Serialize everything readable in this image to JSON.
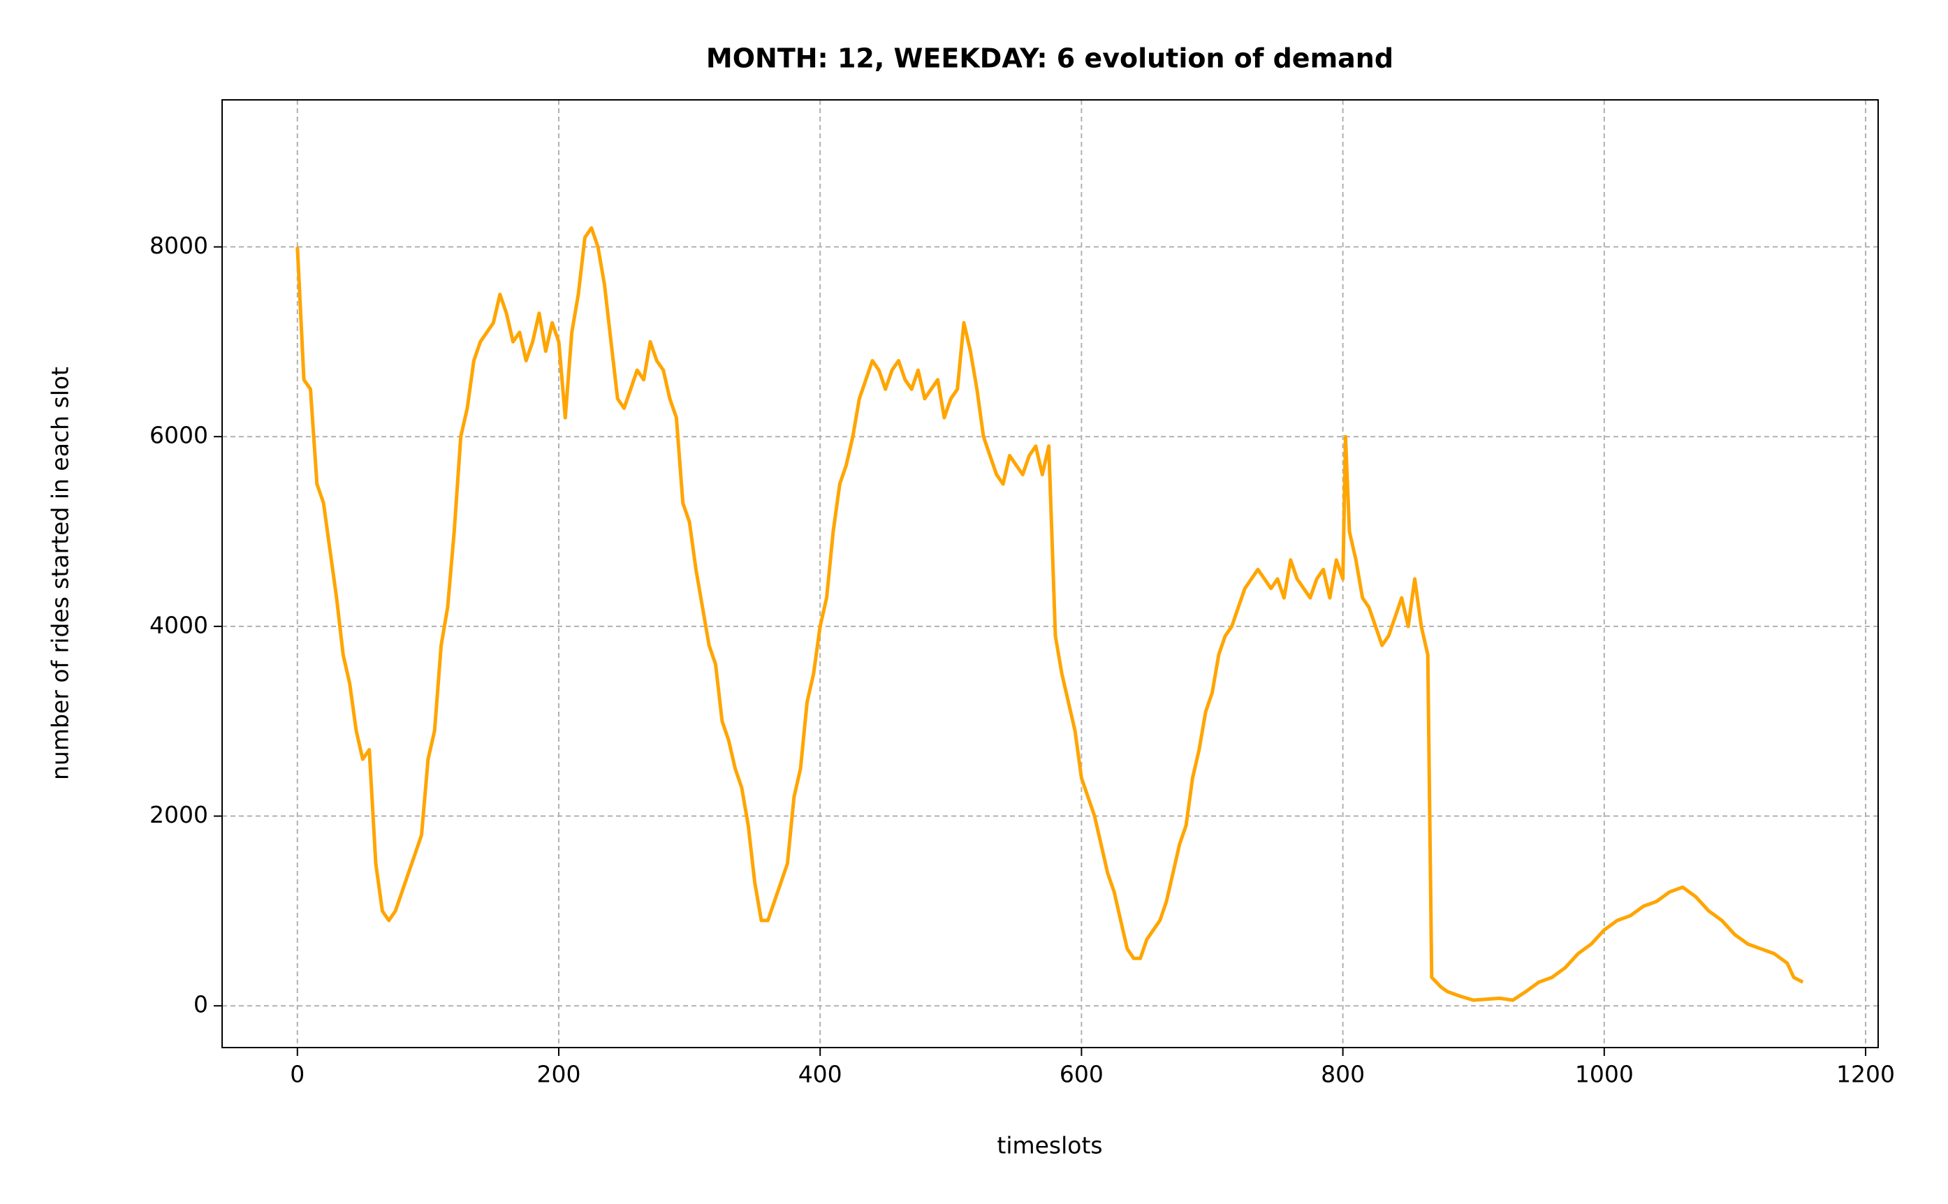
{
  "chart_data": {
    "type": "line",
    "title": "MONTH: 12, WEEKDAY: 6 evolution of demand",
    "x_label": "timeslots",
    "y_label": "number of rides started in each slot",
    "color": "#ffa500",
    "grid": true,
    "xlim": [
      -57.6,
      1209.6
    ],
    "ylim": [
      -440,
      9550
    ],
    "xticks": [
      0,
      200,
      400,
      600,
      800,
      1000,
      1200
    ],
    "yticks": [
      0,
      2000,
      4000,
      6000,
      8000
    ],
    "x": [
      0,
      5,
      10,
      15,
      20,
      25,
      30,
      35,
      40,
      45,
      50,
      55,
      60,
      65,
      70,
      75,
      80,
      85,
      90,
      95,
      100,
      105,
      110,
      115,
      120,
      125,
      130,
      135,
      140,
      145,
      150,
      155,
      160,
      165,
      170,
      175,
      180,
      185,
      190,
      195,
      200,
      205,
      210,
      215,
      220,
      225,
      230,
      235,
      240,
      245,
      250,
      255,
      260,
      265,
      270,
      275,
      280,
      285,
      290,
      295,
      300,
      305,
      310,
      315,
      320,
      325,
      330,
      335,
      340,
      345,
      350,
      355,
      360,
      365,
      370,
      375,
      380,
      385,
      390,
      395,
      400,
      405,
      410,
      415,
      420,
      425,
      430,
      435,
      440,
      445,
      450,
      455,
      460,
      465,
      470,
      475,
      480,
      485,
      490,
      495,
      500,
      505,
      510,
      515,
      520,
      525,
      530,
      535,
      540,
      545,
      550,
      555,
      560,
      565,
      570,
      575,
      580,
      585,
      590,
      595,
      600,
      605,
      610,
      615,
      620,
      625,
      630,
      635,
      640,
      645,
      650,
      655,
      660,
      665,
      670,
      675,
      680,
      685,
      690,
      695,
      700,
      705,
      710,
      715,
      720,
      725,
      730,
      735,
      740,
      745,
      750,
      755,
      760,
      765,
      770,
      775,
      780,
      785,
      790,
      795,
      800,
      802,
      805,
      810,
      815,
      820,
      825,
      830,
      835,
      840,
      845,
      850,
      855,
      860,
      865,
      868,
      875,
      880,
      890,
      900,
      910,
      920,
      930,
      940,
      950,
      960,
      970,
      980,
      990,
      1000,
      1010,
      1020,
      1030,
      1040,
      1050,
      1060,
      1070,
      1080,
      1090,
      1100,
      1110,
      1120,
      1130,
      1140,
      1145,
      1152
    ],
    "values": [
      8000,
      6600,
      6500,
      5500,
      5300,
      4800,
      4300,
      3700,
      3400,
      2900,
      2600,
      2700,
      1500,
      1000,
      900,
      1000,
      1200,
      1400,
      1600,
      1800,
      2600,
      2900,
      3800,
      4200,
      5000,
      6000,
      6300,
      6800,
      7000,
      7100,
      7200,
      7500,
      7300,
      7000,
      7100,
      6800,
      7000,
      7300,
      6900,
      7200,
      7000,
      6200,
      7100,
      7500,
      8100,
      8200,
      8000,
      7600,
      7000,
      6400,
      6300,
      6500,
      6700,
      6600,
      7000,
      6800,
      6700,
      6400,
      6200,
      5300,
      5100,
      4600,
      4200,
      3800,
      3600,
      3000,
      2800,
      2500,
      2300,
      1900,
      1300,
      900,
      900,
      1100,
      1300,
      1500,
      2200,
      2500,
      3200,
      3500,
      4000,
      4300,
      5000,
      5500,
      5700,
      6000,
      6400,
      6600,
      6800,
      6700,
      6500,
      6700,
      6800,
      6600,
      6500,
      6700,
      6400,
      6500,
      6600,
      6200,
      6400,
      6500,
      7200,
      6900,
      6500,
      6000,
      5800,
      5600,
      5500,
      5800,
      5700,
      5600,
      5800,
      5900,
      5600,
      5900,
      3900,
      3500,
      3200,
      2900,
      2400,
      2200,
      2000,
      1700,
      1400,
      1200,
      900,
      600,
      500,
      500,
      700,
      800,
      900,
      1100,
      1400,
      1700,
      1900,
      2400,
      2700,
      3100,
      3300,
      3700,
      3900,
      4000,
      4200,
      4400,
      4500,
      4600,
      4500,
      4400,
      4500,
      4300,
      4700,
      4500,
      4400,
      4300,
      4500,
      4600,
      4300,
      4700,
      4500,
      6000,
      5000,
      4700,
      4300,
      4200,
      4000,
      3800,
      3900,
      4100,
      4300,
      4000,
      4500,
      4000,
      3700,
      300,
      200,
      150,
      100,
      60,
      70,
      80,
      60,
      150,
      250,
      300,
      400,
      550,
      650,
      800,
      900,
      950,
      1050,
      1100,
      1200,
      1250,
      1150,
      1000,
      900,
      750,
      650,
      600,
      550,
      450,
      300,
      250
    ]
  }
}
